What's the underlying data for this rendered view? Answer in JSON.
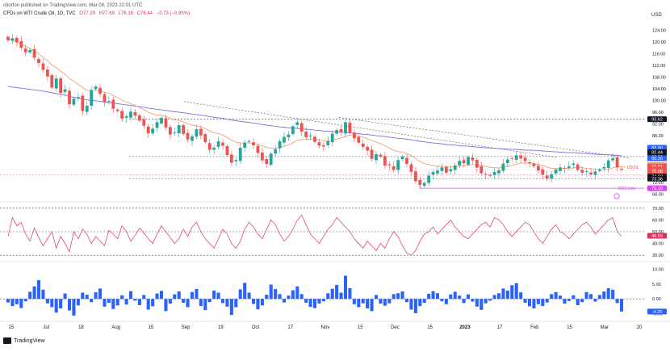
{
  "header": {
    "published": "cborton published on TradingView.com, Mar 08, 2023 22:01 UTC",
    "symbol": "CFDs on WTI Crude Oil, 1D, TVC",
    "o": "O77.29",
    "h": "H77.69",
    "l": "L76.16",
    "c": "C76.44",
    "chg": "−0.73 (−0.95%)"
  },
  "currency": "USD",
  "footer": {
    "brand": "TradingView"
  },
  "colors": {
    "up": "#26a69a",
    "down": "#ef5350",
    "ema_fast": "#f7a072",
    "ema_slow": "#7b6fe0",
    "rsi": "#e0305a",
    "hist_up": "#2962ff",
    "grid": "#555555",
    "supply": "#f48fb1",
    "low_line": "#e040fb"
  },
  "chart_data": [
    {
      "type": "candlestick",
      "title": "CFDs on WTI Crude Oil, 1D, TVC",
      "x_ticks": [
        "15",
        "Jul",
        "18",
        "Aug",
        "15",
        "Sep",
        "19",
        "Oct",
        "17",
        "Nov",
        "15",
        "Dec",
        "15",
        "2023",
        "17",
        "Feb",
        "15",
        "Mar",
        "20"
      ],
      "y_ticks": [
        "124.00",
        "120.00",
        "116.00",
        "112.00",
        "108.00",
        "104.00",
        "100.00",
        "96.00",
        "92.00",
        "88.00",
        "84.00",
        "80.00",
        "76.00",
        "72.00",
        "68.00"
      ],
      "ylim": [
        66,
        126
      ],
      "close_series": [
        120.5,
        121.2,
        119.8,
        118,
        116.4,
        117.2,
        114.6,
        112.8,
        110.4,
        108.2,
        104.4,
        107.5,
        102.6,
        103.8,
        98.7,
        100.6,
        101.2,
        96.4,
        98.2,
        103.6,
        104.8,
        102.3,
        99.4,
        99.8,
        97.2,
        96.4,
        93.8,
        94.6,
        96.2,
        94.8,
        93.1,
        91.4,
        88.8,
        90.4,
        92.6,
        94.1,
        90.8,
        88.4,
        89.1,
        91.6,
        88.6,
        86.7,
        87.8,
        90.2,
        88.1,
        85.8,
        83.2,
        83.9,
        86.1,
        84.6,
        81.4,
        78.8,
        79.7,
        83.9,
        85.6,
        86.2,
        84.7,
        82.1,
        79.6,
        78.4,
        81.9,
        83.4,
        86.1,
        87.6,
        88.4,
        91.2,
        92.6,
        89.4,
        87.5,
        88.1,
        85.9,
        84.6,
        84.3,
        86.1,
        88.7,
        89.9,
        89.2,
        92.6,
        88.9,
        87.1,
        85.6,
        84.2,
        82.9,
        80.1,
        81.7,
        80.9,
        77.8,
        77.9,
        76.3,
        79.7,
        80.9,
        78.4,
        75.7,
        72.5,
        71.2,
        71.9,
        74.4,
        75.6,
        76.1,
        77.2,
        75.4,
        76.6,
        77.9,
        79.4,
        78.6,
        80.7,
        79.6,
        77.1,
        75.2,
        74.6,
        74.3,
        75.6,
        76.2,
        78.5,
        79.9,
        80.1,
        81.3,
        80.2,
        79.4,
        78.6,
        77.6,
        76.1,
        74.7,
        73.4,
        74.8,
        76.4,
        77.2,
        76.9,
        77.6,
        78.5,
        76.3,
        75.4,
        75.9,
        74.8,
        75.8,
        76.4,
        77.3,
        79.6,
        80.3,
        77.2,
        76.4
      ],
      "volume_lines": {
        "ema_fast": [
          121,
          120.6,
          120,
          119.2,
          118.5,
          117.8,
          116.9,
          115.9,
          114.8,
          113.5,
          112.1,
          111.2,
          110,
          108.9,
          107.5,
          106.5,
          105.6,
          104.4,
          103.5,
          103.4,
          103.5,
          103.3,
          102.8,
          102.4,
          101.7,
          101,
          100.1,
          99.4,
          98.9,
          98.3,
          97.6,
          96.9,
          96,
          95.4,
          95.1,
          95,
          94.5,
          93.9,
          93.4,
          93.2,
          92.7,
          92.1,
          91.6,
          91.4,
          91,
          90.4,
          89.6,
          89,
          88.7,
          88.2,
          87.4,
          86.5,
          85.8,
          85.5,
          85.5,
          85.5,
          85.4,
          85,
          84.5,
          84,
          83.7,
          83.7,
          84,
          84.4,
          84.8,
          85.6,
          86.4,
          86.7,
          86.8,
          86.9,
          86.8,
          86.5,
          86.2,
          86.2,
          86.5,
          86.9,
          87.2,
          87.9,
          88.1,
          88,
          87.8,
          87.5,
          87,
          86.3,
          85.8,
          85.3,
          84.5,
          83.8,
          83,
          82.6,
          82.4,
          81.9,
          81.2,
          80.2,
          79.2,
          78.5,
          78.1,
          77.8,
          77.6,
          77.6,
          77.4,
          77.3,
          77.4,
          77.6,
          77.7,
          78,
          78.2,
          78.1,
          77.8,
          77.5,
          77.2,
          77.1,
          77,
          77.2,
          77.6,
          77.9,
          78.3,
          78.6,
          78.7,
          78.6,
          78.5,
          78.2,
          77.8,
          77.3,
          76.9,
          76.8,
          76.8,
          76.9,
          76.9,
          77,
          77.3,
          77.1,
          76.9,
          76.7,
          76.5,
          76.5,
          76.5,
          76.6,
          77,
          77.4,
          77.4,
          77.3
        ],
        "ema_slow": [
          104.8,
          104.6,
          104.4,
          104.2,
          104,
          103.8,
          103.6,
          103.4,
          103.2,
          102.9,
          102.6,
          102.4,
          102.1,
          101.8,
          101.4,
          101.1,
          100.8,
          100.5,
          100.2,
          100,
          99.9,
          99.7,
          99.5,
          99.3,
          99.1,
          98.9,
          98.7,
          98.5,
          98.3,
          98.1,
          97.9,
          97.7,
          97.4,
          97.2,
          97,
          96.8,
          96.6,
          96.4,
          96.2,
          96,
          95.8,
          95.6,
          95.4,
          95.2,
          95,
          94.8,
          94.5,
          94.3,
          94.1,
          93.9,
          93.6,
          93.3,
          93.1,
          92.9,
          92.7,
          92.5,
          92.3,
          92.1,
          91.8,
          91.6,
          91.4,
          91.2,
          91,
          90.9,
          90.7,
          90.6,
          90.5,
          90.3,
          90.2,
          90.1,
          89.9,
          89.8,
          89.6,
          89.5,
          89.4,
          89.3,
          89.2,
          89.1,
          89,
          88.8,
          88.7,
          88.5,
          88.4,
          88.2,
          88,
          87.9,
          87.7,
          87.5,
          87.3,
          87.1,
          87,
          86.8,
          86.6,
          86.3,
          86.1,
          85.9,
          85.7,
          85.5,
          85.4,
          85.2,
          85,
          84.9,
          84.8,
          84.6,
          84.5,
          84.4,
          84.3,
          84.1,
          84,
          83.9,
          83.8,
          83.7,
          83.6,
          83.5,
          83.4,
          83.4,
          83.3,
          83.2,
          83.1,
          83.1,
          83,
          82.9,
          82.8,
          82.7,
          82.6,
          82.5,
          82.4,
          82.3,
          82.2,
          82.2,
          82.1,
          82,
          81.9,
          81.8,
          81.7,
          81.6,
          81.5,
          81.5,
          81.4,
          81.3,
          81.2
        ]
      },
      "price_labels": [
        {
          "value": "93.62",
          "bg": "#131722",
          "fg": "#ffffff",
          "y": 93.62
        },
        {
          "value": "83.90",
          "bg": "#2962ff",
          "fg": "#ffffff",
          "y": 83.9
        },
        {
          "value": "82.44",
          "bg": "#131722",
          "fg": "#ffffff",
          "y": 82.44
        },
        {
          "value": "80.90",
          "bg": "#131722",
          "fg": "#ffffff",
          "y": 80.9
        },
        {
          "value": "80.30",
          "bg": "#2962ff",
          "fg": "#ffffff",
          "y": 80.3
        },
        {
          "value": "78.02",
          "bg": "#f7a072",
          "fg": "#ffffff",
          "y": 78.02
        },
        {
          "value": "77.51",
          "bg": "#ef5350",
          "fg": "#ffffff",
          "y": 77.51
        },
        {
          "value": "76.36",
          "bg": "#ef5350",
          "fg": "#ffffff",
          "y": 76.36
        },
        {
          "value": "75.88",
          "bg": "#ef5350",
          "fg": "#ffffff",
          "y": 75.88
        },
        {
          "value": "74.08",
          "bg": "#131722",
          "fg": "#ffffff",
          "y": 74.08
        },
        {
          "value": "73.36",
          "bg": "#131722",
          "fg": "#ffffff",
          "y": 73.36
        },
        {
          "value": "70.10",
          "bg": "#e040fb",
          "fg": "#ffffff",
          "y": 70.1
        }
      ],
      "annotations": [
        {
          "text": "USOIL",
          "y": 76.4
        },
        {
          "text": "2022 Low",
          "y": 70.1
        }
      ]
    },
    {
      "type": "line",
      "title": "RSI",
      "y_ticks": [
        "70.00",
        "60.00",
        "50.00",
        "40.00",
        "30.00"
      ],
      "ylim": [
        26,
        74
      ],
      "values": [
        46,
        62,
        55,
        58,
        48,
        42,
        53,
        45,
        38,
        44,
        50,
        36,
        46,
        40,
        33,
        50,
        44,
        52,
        48,
        40,
        46,
        42,
        38,
        51,
        48,
        44,
        55,
        50,
        42,
        47,
        53,
        49,
        44,
        40,
        48,
        55,
        50,
        45,
        40,
        44,
        52,
        46,
        54,
        58,
        50,
        44,
        40,
        36,
        44,
        52,
        48,
        40,
        36,
        42,
        52,
        58,
        54,
        48,
        44,
        52,
        60,
        56,
        48,
        42,
        46,
        52,
        60,
        64,
        56,
        48,
        44,
        40,
        46,
        52,
        56,
        62,
        58,
        54,
        50,
        44,
        40,
        36,
        42,
        38,
        34,
        40,
        36,
        44,
        50,
        46,
        38,
        32,
        30,
        34,
        42,
        48,
        50,
        54,
        48,
        52,
        56,
        60,
        54,
        50,
        46,
        44,
        48,
        52,
        56,
        58,
        54,
        62,
        60,
        56,
        50,
        46,
        50,
        54,
        58,
        56,
        50,
        44,
        40,
        46,
        52,
        56,
        50,
        48,
        44,
        48,
        52,
        56,
        58,
        54,
        48,
        52,
        56,
        60,
        62,
        50,
        46
      ],
      "value_label": "46.59"
    },
    {
      "type": "bar",
      "title": "Momentum histogram",
      "y_ticks": [
        "10.00",
        "5.00",
        "0.00",
        "-5.00"
      ],
      "ylim": [
        -7,
        12
      ],
      "values": [
        -1.2,
        -2.4,
        -1.8,
        -3.1,
        -0.8,
        2.4,
        4.2,
        6.3,
        3.1,
        -1.5,
        -2.8,
        -4.6,
        -3.2,
        1.8,
        -3.9,
        -5.6,
        -2.2,
        2.1,
        1.4,
        -1.1,
        2.2,
        3.5,
        -2.6,
        -1.3,
        -3.4,
        -2.2,
        1.2,
        -1.9,
        2.6,
        -0.6,
        -2.1,
        1.3,
        -3.6,
        -2.5,
        1.8,
        2.7,
        -4.1,
        -1.6,
        1.5,
        2.5,
        -1.3,
        -2.8,
        2.3,
        3.3,
        -2.4,
        -3.8,
        -1.1,
        2.8,
        2.1,
        -1.4,
        -2.6,
        -5.4,
        -2.8,
        3.2,
        5.4,
        2.1,
        -1.7,
        -3.5,
        -2.2,
        1.4,
        4.8,
        3.3,
        1.6,
        -1.2,
        1.1,
        2.9,
        4.2,
        1.6,
        -1.3,
        -2.7,
        -3.1,
        -1.6,
        -0.8,
        1.9,
        3.4,
        4.7,
        2.1,
        7.8,
        3.6,
        -1.8,
        -2.8,
        -1.5,
        -3.2,
        -4.1,
        1.3,
        -1.6,
        -2.3,
        -1.5,
        1.6,
        1.9,
        2.5,
        -1.1,
        -3.6,
        -4.8,
        -2.4,
        -1.3,
        1.7,
        2.6,
        1.9,
        -0.8,
        -1.8,
        1.5,
        2.4,
        1.1,
        -1.4,
        1.5,
        -0.9,
        -2.6,
        -3.7,
        -1.5,
        -0.6,
        1.3,
        1.9,
        3.5,
        2.8,
        4.6,
        5.3,
        2.2,
        -1.3,
        -2.5,
        -3.2,
        -1.8,
        -2.4,
        -1.2,
        1.6,
        2.3,
        1.1,
        -1.6,
        -0.7,
        1.2,
        -2.1,
        -1.1,
        2.3,
        1.6,
        -0.9,
        1.3,
        2.5,
        3.6,
        3.1,
        -1.4,
        -4.25
      ],
      "value_label": "-4.25"
    }
  ]
}
